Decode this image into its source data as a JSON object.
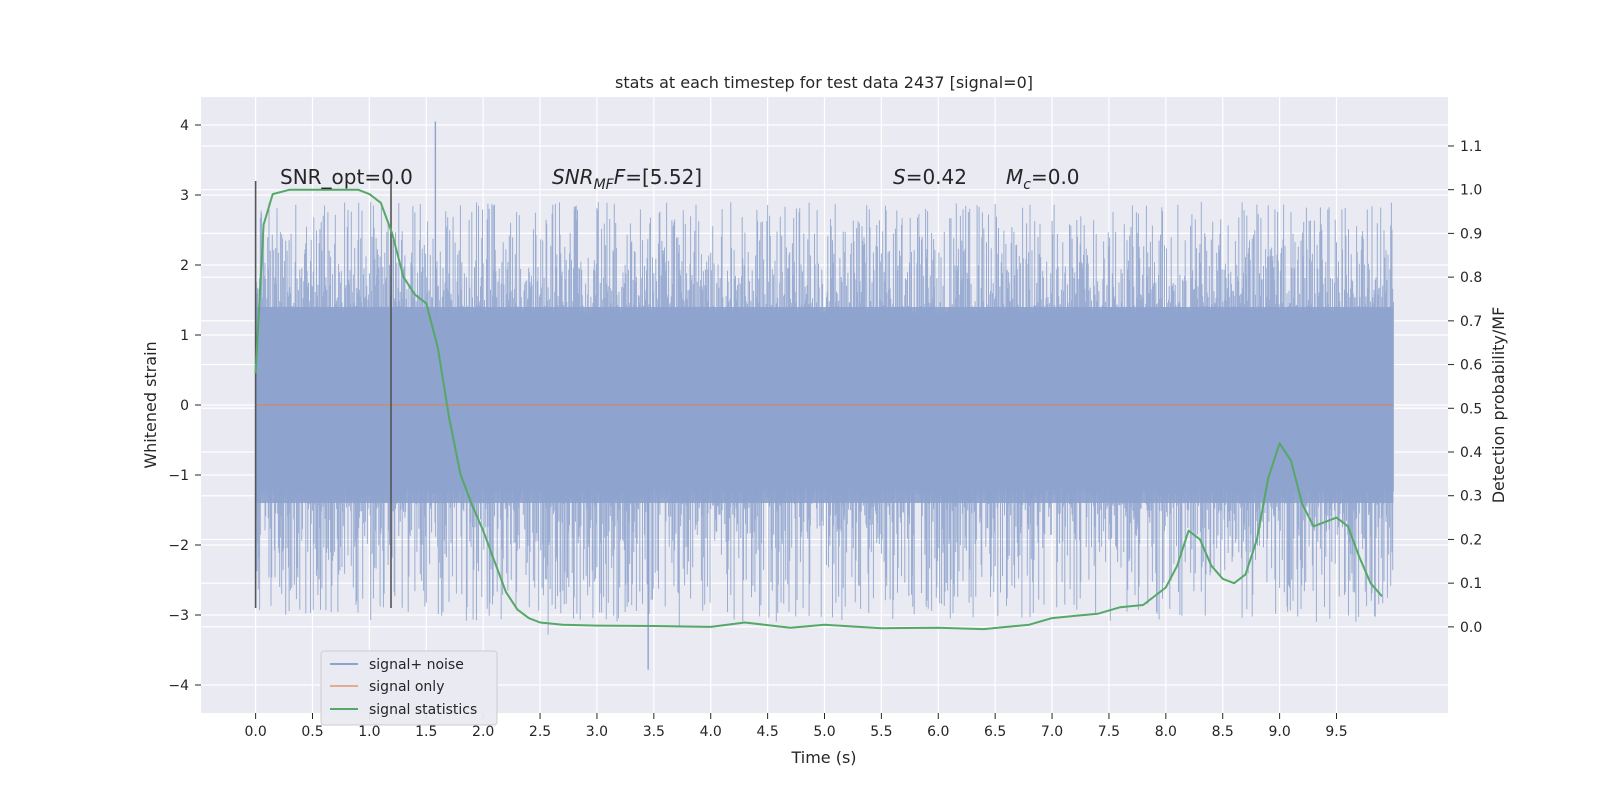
{
  "chart_data": {
    "type": "line",
    "title": "stats at each timestep for test data 2437 [signal=0]",
    "xlabel": "Time (s)",
    "ylabel_left": "Whitened strain",
    "ylabel_right": "Detection probability/MF",
    "x_ticks": [
      "0.0",
      "0.5",
      "1.0",
      "1.5",
      "2.0",
      "2.5",
      "3.0",
      "3.5",
      "4.0",
      "4.5",
      "5.0",
      "5.5",
      "6.0",
      "6.5",
      "7.0",
      "7.5",
      "8.0",
      "8.5",
      "9.0",
      "9.5"
    ],
    "y_left_ticks": [
      "4",
      "3",
      "2",
      "1",
      "0",
      "−1",
      "−2",
      "−3",
      "−4"
    ],
    "y_right_ticks": [
      "1.1",
      "1.0",
      "0.9",
      "0.8",
      "0.7",
      "0.6",
      "0.5",
      "0.4",
      "0.3",
      "0.2",
      "0.1",
      "0.0"
    ],
    "xlim": [
      -0.48,
      10.48
    ],
    "ylim_left": [
      -4.4,
      4.4
    ],
    "ylim_right": [
      -0.197,
      1.212
    ],
    "grid": true,
    "legend_placement": "lower-left",
    "annotations": [
      {
        "text": "SNR_opt=0.0"
      },
      {
        "text": "SNR",
        "sub": "MF",
        "after": "=[5.52]"
      },
      {
        "text": "S",
        "after": "=0.42"
      },
      {
        "text": "M",
        "sub": "c",
        "after": "=0.0"
      }
    ],
    "vertical_markers": [
      0.0,
      1.19
    ],
    "series": [
      {
        "name": "signal+ noise",
        "color": "#8da2cd",
        "axis": "left",
        "x_range": [
          0.0,
          10.0
        ],
        "envelope_low": -1.4,
        "envelope_high": 1.4,
        "max": 4.05,
        "min": -3.78
      },
      {
        "name": "signal only",
        "color": "#dd8452",
        "axis": "left",
        "x": [
          0.0,
          10.0
        ],
        "y": [
          0.0,
          0.0
        ]
      },
      {
        "name": "signal statistics",
        "color": "#55a868",
        "axis": "right",
        "x": [
          0.0,
          0.07,
          0.15,
          0.3,
          0.5,
          0.7,
          0.9,
          1.0,
          1.1,
          1.2,
          1.3,
          1.4,
          1.5,
          1.6,
          1.7,
          1.8,
          1.9,
          2.0,
          2.1,
          2.2,
          2.3,
          2.4,
          2.5,
          2.7,
          3.0,
          3.5,
          4.0,
          4.3,
          4.7,
          5.0,
          5.5,
          6.0,
          6.4,
          6.8,
          7.0,
          7.2,
          7.4,
          7.6,
          7.8,
          8.0,
          8.1,
          8.2,
          8.3,
          8.4,
          8.5,
          8.6,
          8.7,
          8.8,
          8.9,
          9.0,
          9.1,
          9.2,
          9.3,
          9.4,
          9.5,
          9.6,
          9.7,
          9.8,
          9.9
        ],
        "y": [
          0.58,
          0.92,
          0.99,
          1.0,
          1.0,
          1.0,
          1.0,
          0.99,
          0.97,
          0.9,
          0.8,
          0.76,
          0.74,
          0.64,
          0.48,
          0.35,
          0.28,
          0.22,
          0.15,
          0.08,
          0.04,
          0.02,
          0.01,
          0.005,
          0.003,
          0.002,
          0.0,
          0.01,
          -0.002,
          0.005,
          -0.003,
          -0.002,
          -0.005,
          0.005,
          0.02,
          0.025,
          0.03,
          0.045,
          0.05,
          0.09,
          0.14,
          0.22,
          0.2,
          0.14,
          0.11,
          0.1,
          0.12,
          0.2,
          0.34,
          0.42,
          0.38,
          0.28,
          0.23,
          0.24,
          0.25,
          0.23,
          0.16,
          0.1,
          0.07
        ]
      }
    ]
  }
}
